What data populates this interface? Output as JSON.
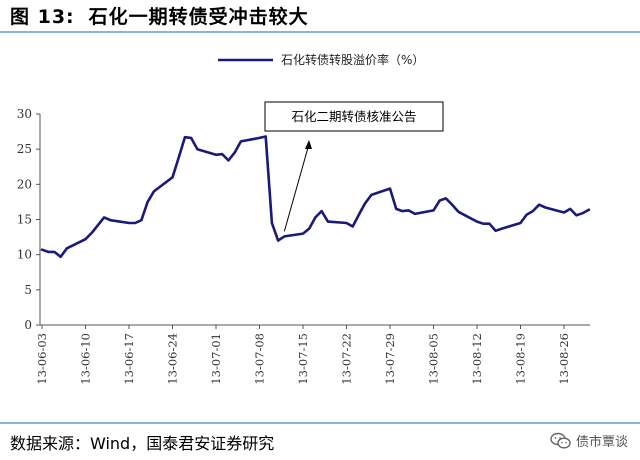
{
  "header": {
    "figure_label": "图  13:",
    "title": "石化一期转债受冲击较大"
  },
  "footer": {
    "source": "数据来源：Wind，国泰君安证券研究"
  },
  "watermark": {
    "text": "债市覃谈",
    "icon": "wechat-icon"
  },
  "chart_data": {
    "type": "line",
    "title": "",
    "xlabel": "",
    "ylabel": "",
    "ylim": [
      0,
      30
    ],
    "yticks": [
      0,
      5,
      10,
      15,
      20,
      25,
      30
    ],
    "grid": false,
    "legend_placement": "top-center",
    "color": "#1a1a7a",
    "x_tick_labels": [
      "13-06-03",
      "13-06-10",
      "13-06-17",
      "13-06-24",
      "13-07-01",
      "13-07-08",
      "13-07-15",
      "13-07-22",
      "13-07-29",
      "13-08-05",
      "13-08-12",
      "13-08-19",
      "13-08-26"
    ],
    "series": [
      {
        "name": "石化转债转股溢价率（%）",
        "x": [
          "13-06-03",
          "13-06-04",
          "13-06-05",
          "13-06-06",
          "13-06-07",
          "13-06-10",
          "13-06-11",
          "13-06-13",
          "13-06-14",
          "13-06-17",
          "13-06-18",
          "13-06-19",
          "13-06-20",
          "13-06-21",
          "13-06-24",
          "13-06-25",
          "13-06-26",
          "13-06-27",
          "13-06-28",
          "13-07-01",
          "13-07-02",
          "13-07-03",
          "13-07-04",
          "13-07-05",
          "13-07-08",
          "13-07-09",
          "13-07-10",
          "13-07-11",
          "13-07-12",
          "13-07-15",
          "13-07-16",
          "13-07-17",
          "13-07-18",
          "13-07-19",
          "13-07-22",
          "13-07-23",
          "13-07-24",
          "13-07-25",
          "13-07-26",
          "13-07-29",
          "13-07-30",
          "13-07-31",
          "13-08-01",
          "13-08-02",
          "13-08-05",
          "13-08-06",
          "13-08-07",
          "13-08-08",
          "13-08-09",
          "13-08-12",
          "13-08-13",
          "13-08-14",
          "13-08-15",
          "13-08-16",
          "13-08-19",
          "13-08-20",
          "13-08-21",
          "13-08-22",
          "13-08-23",
          "13-08-26",
          "13-08-27",
          "13-08-28",
          "13-08-29",
          "13-08-30"
        ],
        "values": [
          10.7,
          10.4,
          10.4,
          9.7,
          10.9,
          12.2,
          13.1,
          15.3,
          14.9,
          14.5,
          14.5,
          14.9,
          17.5,
          19.0,
          21.0,
          23.8,
          26.7,
          26.6,
          25.0,
          24.2,
          24.3,
          23.4,
          24.5,
          26.1,
          26.6,
          26.8,
          14.5,
          12.0,
          12.6,
          13.0,
          13.7,
          15.3,
          16.2,
          14.7,
          14.5,
          14.0,
          15.7,
          17.3,
          18.5,
          19.4,
          16.5,
          16.2,
          16.3,
          15.8,
          16.3,
          17.7,
          18.0,
          17.1,
          16.1,
          14.7,
          14.4,
          14.4,
          13.4,
          13.7,
          14.5,
          15.7,
          16.2,
          17.1,
          16.7,
          16.0,
          16.5,
          15.6,
          15.9,
          16.4
        ]
      }
    ],
    "annotations": [
      {
        "text": "石化二期转债核准公告",
        "points_to_x": "13-07-12",
        "points_to_y": 12.6
      }
    ]
  }
}
